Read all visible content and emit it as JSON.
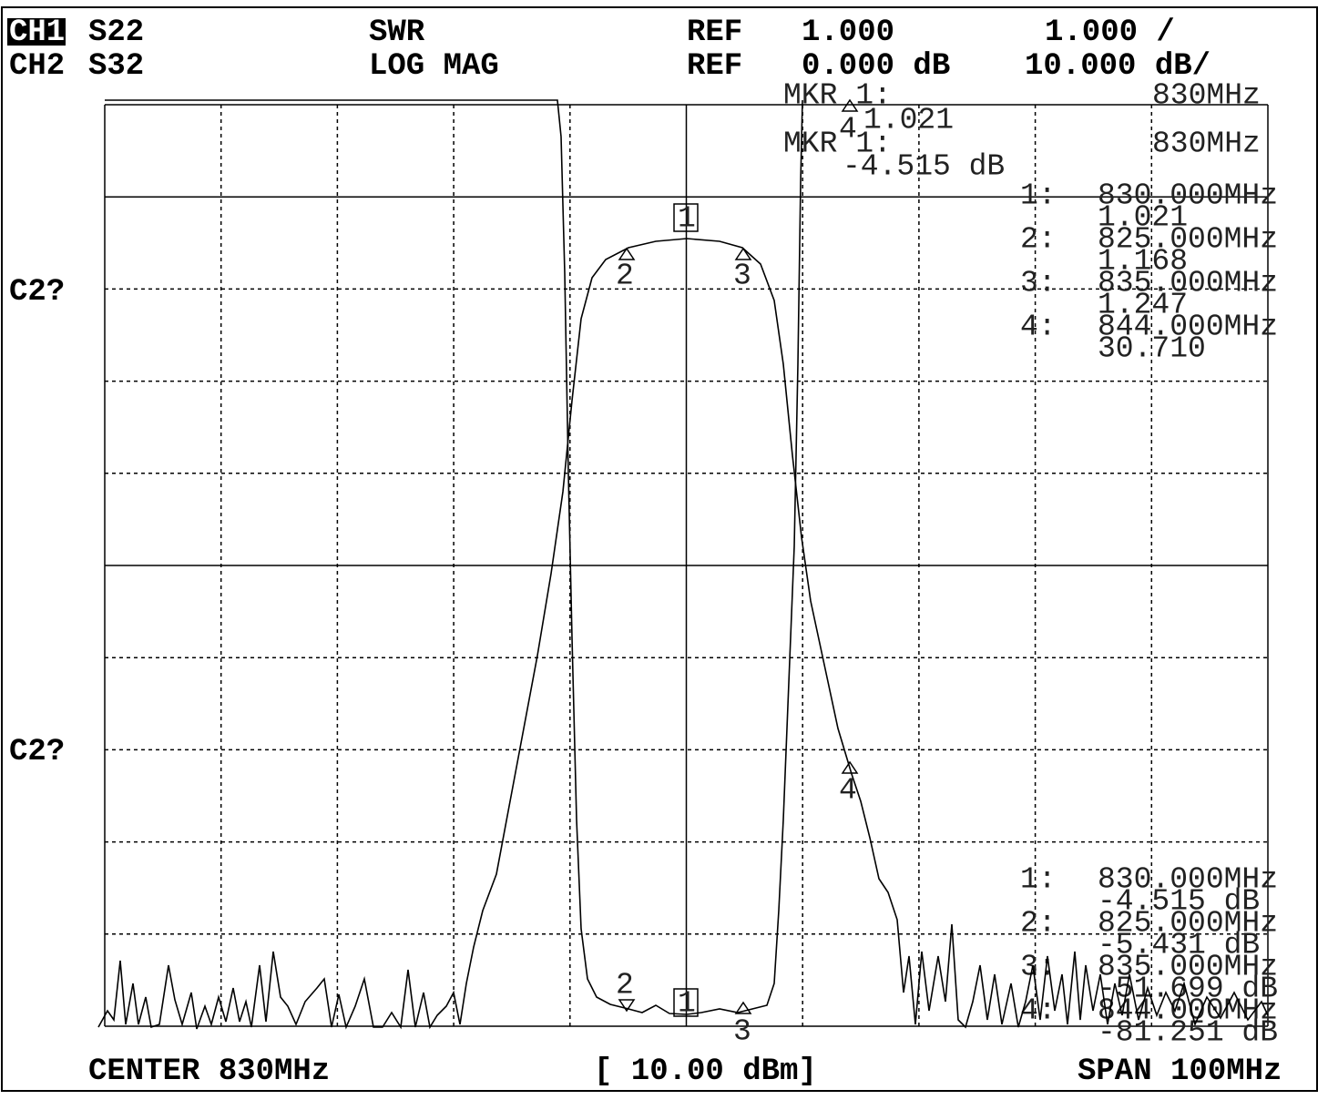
{
  "header": {
    "rows": [
      [
        "CH1",
        "S22",
        "SWR",
        "REF",
        "1.000",
        "1.000 /"
      ],
      [
        "CH2",
        "S32",
        "LOG MAG",
        "REF",
        "0.000 dB",
        "10.000 dB/"
      ]
    ]
  },
  "left_labels": [
    "C2?",
    "C2?"
  ],
  "ch1_marker": {
    "label": "MKR 1:",
    "freq": "830MHz",
    "value": "1.021"
  },
  "ch2_marker": {
    "label": "MKR 1:",
    "freq": "830MHz",
    "value": "-4.515 dB"
  },
  "ch1_list": [
    {
      "index": "1:",
      "freq": "830.000MHz",
      "value": "1.021"
    },
    {
      "index": "2:",
      "freq": "825.000MHz",
      "value": "1.168"
    },
    {
      "index": "3:",
      "freq": "835.000MHz",
      "value": "1.247"
    },
    {
      "index": "4:",
      "freq": "844.000MHz",
      "value": "30.710"
    }
  ],
  "ch2_list": [
    {
      "index": "1:",
      "freq": "830.000MHz",
      "value": "-4.515 dB"
    },
    {
      "index": "2:",
      "freq": "825.000MHz",
      "value": "-5.431 dB"
    },
    {
      "index": "3:",
      "freq": "835.000MHz",
      "value": "-51.699 dB"
    },
    {
      "index": "4:",
      "freq": "844.000MHz",
      "value": "-81.251 dB"
    }
  ],
  "trace_markers": [
    "1",
    "2",
    "3",
    "4"
  ],
  "footer": {
    "center": "CENTER 830MHz",
    "power": "[ 10.00 dBm]",
    "span": "SPAN 100MHz"
  }
}
